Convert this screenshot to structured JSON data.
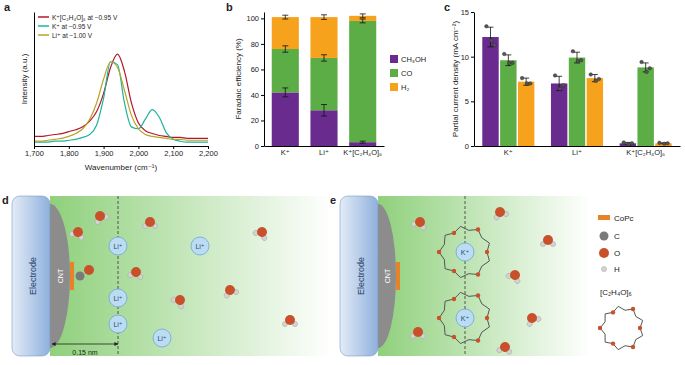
{
  "chart_data": [
    {
      "label": "a",
      "type": "line",
      "x_label": "Wavenumber (cm⁻¹)",
      "y_label": "Intensity (a.u.)",
      "x": [
        1700,
        1720,
        1740,
        1760,
        1780,
        1800,
        1820,
        1840,
        1860,
        1880,
        1900,
        1920,
        1940,
        1960,
        1980,
        2000,
        2020,
        2040,
        2060,
        2080,
        2100,
        2120,
        2140,
        2160,
        2180,
        2200
      ],
      "series": [
        {
          "name": "K⁺[C₂H₄O]₆ at −0.95 V",
          "color": "#b2182b",
          "values": [
            0.1,
            0.1,
            0.11,
            0.12,
            0.13,
            0.15,
            0.17,
            0.2,
            0.26,
            0.36,
            0.55,
            0.82,
            0.96,
            0.78,
            0.45,
            0.24,
            0.16,
            0.13,
            0.11,
            0.1,
            0.09,
            0.09,
            0.08,
            0.08,
            0.08,
            0.08
          ]
        },
        {
          "name": "K⁺ at −0.95 V",
          "color": "#1fb39b",
          "values": [
            0.04,
            0.04,
            0.04,
            0.05,
            0.05,
            0.06,
            0.07,
            0.09,
            0.12,
            0.22,
            0.5,
            0.88,
            0.85,
            0.45,
            0.2,
            0.18,
            0.28,
            0.38,
            0.3,
            0.14,
            0.07,
            0.05,
            0.04,
            0.04,
            0.04,
            0.04
          ]
        },
        {
          "name": "Li⁺ at −1.00 V",
          "color": "#b9a42a",
          "values": [
            0.05,
            0.05,
            0.06,
            0.07,
            0.08,
            0.1,
            0.13,
            0.18,
            0.28,
            0.45,
            0.7,
            0.88,
            0.82,
            0.58,
            0.32,
            0.18,
            0.12,
            0.1,
            0.09,
            0.08,
            0.07,
            0.07,
            0.06,
            0.06,
            0.06,
            0.06
          ]
        }
      ],
      "xlim": [
        1700,
        2200
      ],
      "xticks": [
        {
          "value": 1700,
          "label": "1,700"
        },
        {
          "value": 1800,
          "label": "1,800"
        },
        {
          "value": 1900,
          "label": "1,900"
        },
        {
          "value": 2000,
          "label": "2,000"
        },
        {
          "value": 2100,
          "label": "2,100"
        },
        {
          "value": 2200,
          "label": "2,200"
        }
      ],
      "ylim": [
        0,
        1.4
      ],
      "yticks": [],
      "tick_labels": "x",
      "legend": "top-left"
    },
    {
      "label": "b",
      "type": "bar",
      "stacked": true,
      "y_label": "Faradaic efficiency (%)",
      "categories": [
        "K⁺",
        "Li⁺",
        "K⁺[C₂H₄O]₆"
      ],
      "series": [
        {
          "name": "CH₃OH",
          "color": "#6a2b8e",
          "values": [
            42,
            28,
            3
          ],
          "errors": [
            3.5,
            4.5,
            0.8
          ]
        },
        {
          "name": "CO",
          "color": "#5cad45",
          "values": [
            34,
            41,
            95
          ],
          "errors": [
            2.5,
            2.5,
            1.5
          ]
        },
        {
          "name": "H₂",
          "color": "#f6a21d",
          "values": [
            25,
            32,
            4
          ],
          "errors": [
            1.5,
            1.8,
            1.5
          ]
        }
      ],
      "ylim": [
        0,
        105
      ],
      "yticks": [
        0,
        20,
        40,
        60,
        80,
        100
      ],
      "legend": "right"
    },
    {
      "label": "c",
      "type": "bar",
      "y_label": "Partial current density (mA cm⁻²)",
      "categories": [
        "K⁺",
        "Li⁺",
        "K⁺[C₂H₄O]₆"
      ],
      "series": [
        {
          "color": "#6a2b8e",
          "values": [
            12.2,
            7.0,
            0.3
          ],
          "errors": [
            1.1,
            0.8,
            0.1
          ],
          "points": [
            [
              13.4,
              11.8,
              11.3
            ],
            [
              7.9,
              6.4,
              6.8
            ],
            [
              0.4,
              0.2,
              0.3
            ]
          ]
        },
        {
          "color": "#5cad45",
          "values": [
            9.6,
            9.9,
            8.8
          ],
          "errors": [
            0.6,
            0.6,
            0.5
          ],
          "points": [
            [
              10.3,
              9.3,
              9.3
            ],
            [
              10.6,
              9.5,
              9.6
            ],
            [
              9.4,
              8.3,
              8.7
            ]
          ]
        },
        {
          "color": "#f6a21d",
          "values": [
            7.2,
            7.6,
            0.3
          ],
          "errors": [
            0.4,
            0.4,
            0.05
          ],
          "points": [
            [
              7.6,
              7.0,
              7.0
            ],
            [
              8.0,
              7.3,
              7.5
            ],
            [
              0.35,
              0.25,
              0.3
            ]
          ]
        }
      ],
      "ylim": [
        0,
        15
      ],
      "yticks": [
        0,
        5,
        10,
        15
      ]
    }
  ],
  "diagram_d": {
    "label": "d",
    "electrode": "Electrode",
    "cnt": "CNT",
    "distance": "0.15 nm",
    "ions": [
      "Li⁺",
      "Li⁺",
      "Li⁺",
      "Li⁺",
      "Li⁺"
    ]
  },
  "diagram_e": {
    "label": "e",
    "electrode": "Electrode",
    "cnt": "CNT",
    "ions": [
      "K⁺",
      "K⁺"
    ]
  },
  "legend": {
    "items": [
      "CoPc",
      "C",
      "O",
      "H",
      "[C₂H₄O]₆"
    ]
  }
}
